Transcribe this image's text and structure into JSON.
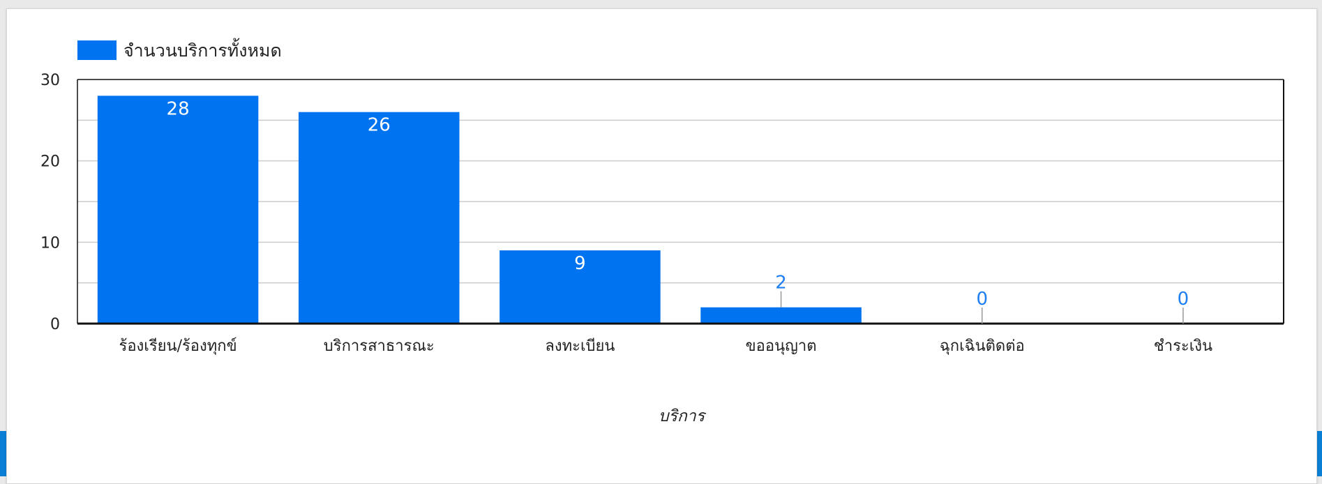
{
  "colors": {
    "bar": "#0073f0",
    "inside_label": "#ffffff",
    "outside_label": "#1f7ef0",
    "grid": "#cccccc",
    "axis": "#111111"
  },
  "chart_data": {
    "type": "bar",
    "categories": [
      "ร้องเรียน/ร้องทุกข์",
      "บริการสาธารณะ",
      "ลงทะเบียน",
      "ขออนุญาต",
      "ฉุกเฉินติดต่อ",
      "ชำระเงิน"
    ],
    "series": [
      {
        "name": "จำนวนบริการทั้งหมด",
        "values": [
          28,
          26,
          9,
          2,
          0,
          0
        ]
      }
    ],
    "xlabel": "บริการ",
    "ylabel": "",
    "ylim": [
      0,
      30
    ],
    "yticks": [
      "0",
      "10",
      "20",
      "30"
    ],
    "grid": true,
    "legend": "top-left",
    "data_labels": true
  }
}
